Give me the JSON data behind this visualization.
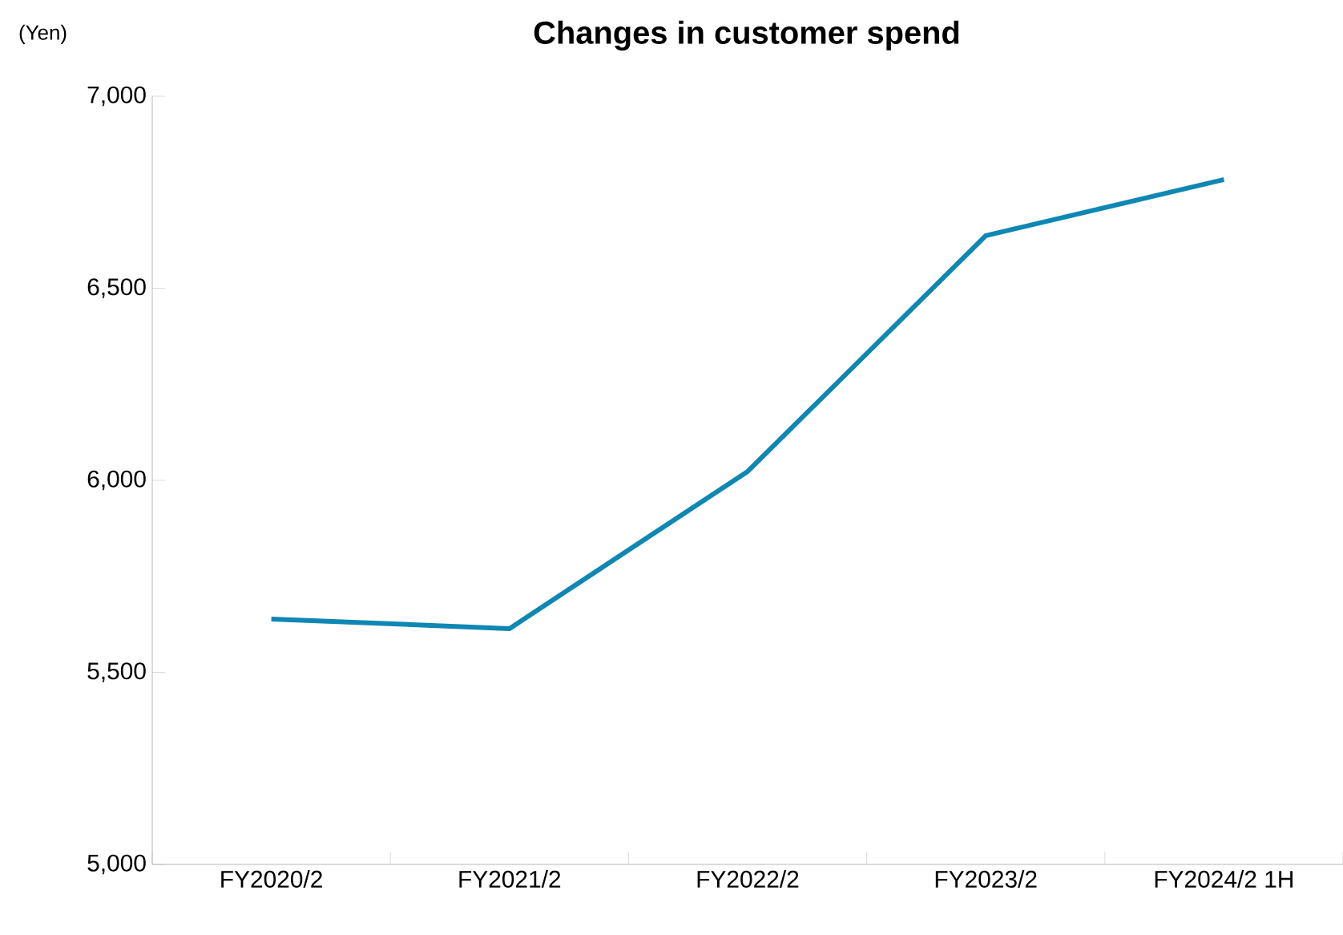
{
  "chart_data": {
    "type": "line",
    "title": "Changes in customer spend",
    "ylabel": "(Yen)",
    "categories": [
      "FY2020/2",
      "FY2021/2",
      "FY2022/2",
      "FY2023/2",
      "FY2024/2 1H"
    ],
    "series": [
      {
        "color": "#0f87b4",
        "values": [
          5639,
          5614,
          6023,
          6637,
          6783
        ]
      }
    ],
    "ylim": [
      5000,
      7000
    ],
    "yticks": [
      {
        "value": 5000,
        "label": "5,000"
      },
      {
        "value": 5500,
        "label": "5,500"
      },
      {
        "value": 6000,
        "label": "6,000"
      },
      {
        "value": 6500,
        "label": "6,500"
      },
      {
        "value": 7000,
        "label": "7,000"
      }
    ],
    "grid": false,
    "marker": "none",
    "line_style": "solid"
  }
}
